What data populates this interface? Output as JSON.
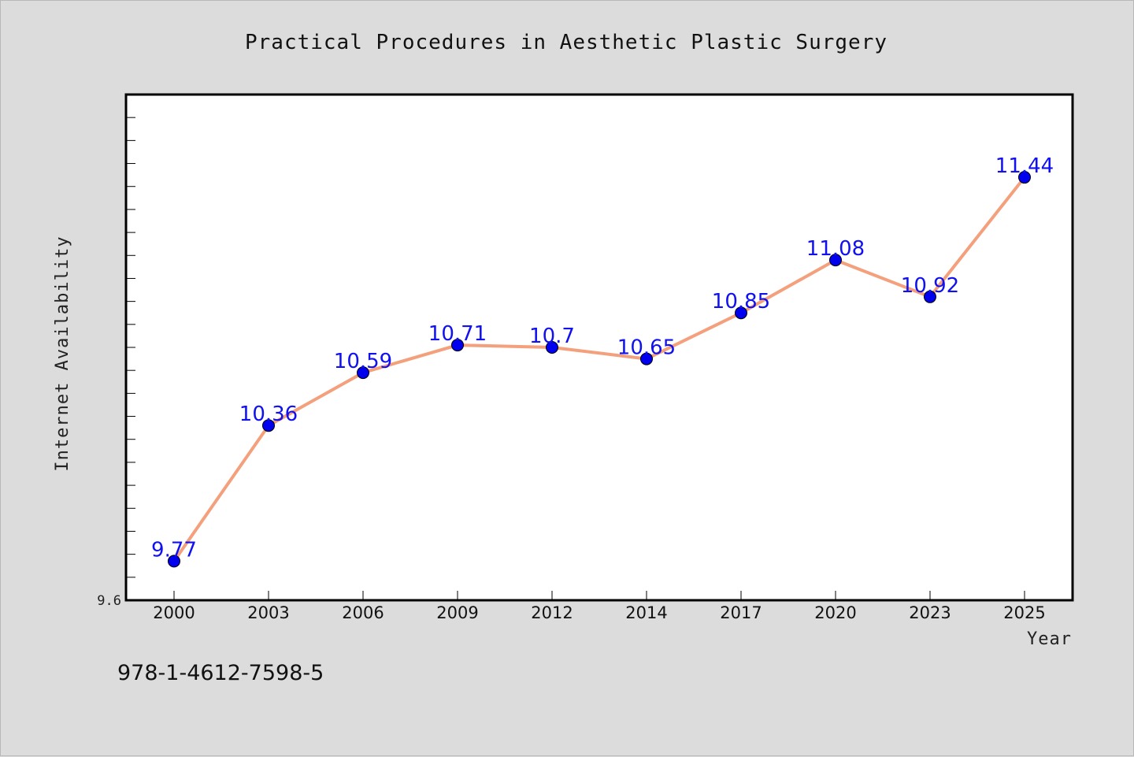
{
  "chart_data": {
    "type": "line",
    "title": "Practical Procedures in Aesthetic Plastic Surgery",
    "xlabel": "Year",
    "ylabel": "Internet Availability",
    "categories": [
      "2000",
      "2003",
      "2006",
      "2009",
      "2012",
      "2014",
      "2017",
      "2020",
      "2023",
      "2025"
    ],
    "series": [
      {
        "values": [
          9.77,
          10.36,
          10.59,
          10.71,
          10.7,
          10.65,
          10.85,
          11.08,
          10.92,
          11.44
        ]
      }
    ],
    "data_labels": [
      "9.77",
      "10.36",
      "10.59",
      "10.71",
      "10.7",
      "10.65",
      "10.85",
      "11.08",
      "10.92",
      "11.44"
    ],
    "y_tick_labels": [
      "9.6"
    ],
    "ylim": [
      9.6,
      11.8
    ],
    "grid": false,
    "colors": {
      "line": "#f4a07c",
      "marker": "#0000ee",
      "label": "#1010f0"
    }
  },
  "footer": {
    "isbn": "978-1-4612-7598-5"
  }
}
